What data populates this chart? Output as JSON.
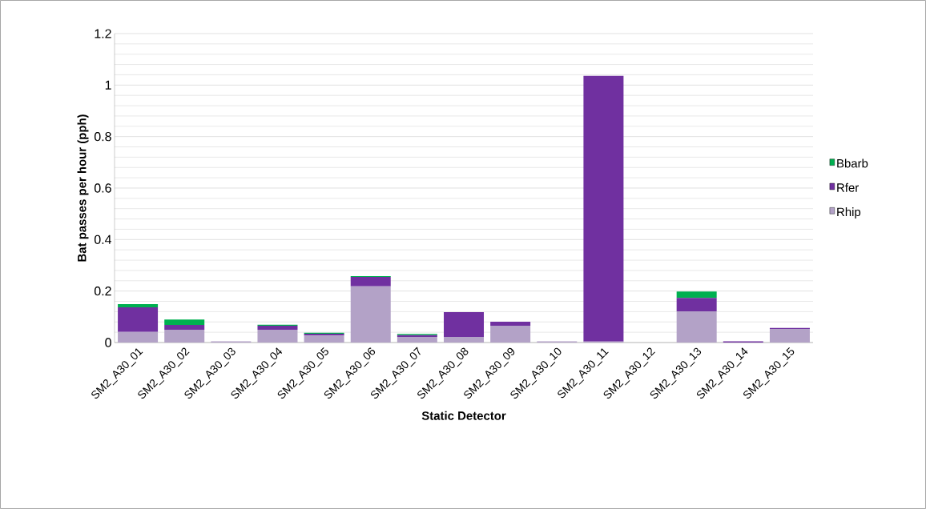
{
  "chart_data": {
    "type": "bar",
    "stacked": true,
    "xlabel": "Static Detector",
    "ylabel": "Bat passes per hour (pph)",
    "categories": [
      "SM2_A30_01",
      "SM2_A30_02",
      "SM2_A30_03",
      "SM2_A30_04",
      "SM2_A30_05",
      "SM2_A30_06",
      "SM2_A30_07",
      "SM2_A30_08",
      "SM2_A30_09",
      "SM2_A30_10",
      "SM2_A30_11",
      "SM2_A30_12",
      "SM2_A30_13",
      "SM2_A30_14",
      "SM2_A30_15"
    ],
    "series": [
      {
        "name": "Rhip",
        "color": "#b3a2c7",
        "values": [
          0.041,
          0.05,
          0.005,
          0.05,
          0.027,
          0.218,
          0.022,
          0.022,
          0.065,
          0.005,
          0.004,
          0,
          0.121,
          0,
          0.053
        ]
      },
      {
        "name": "Rfer",
        "color": "#7030a0",
        "values": [
          0.096,
          0.018,
          0,
          0.015,
          0.007,
          0.037,
          0.007,
          0.096,
          0.016,
          0,
          1.032,
          0,
          0.052,
          0.005,
          0.004
        ]
      },
      {
        "name": "Bbarb",
        "color": "#00b050",
        "values": [
          0.012,
          0.021,
          0,
          0.004,
          0.004,
          0.003,
          0.004,
          0,
          0,
          0,
          0,
          0,
          0.025,
          0,
          0
        ]
      }
    ],
    "ylim": [
      0,
      1.2
    ],
    "yticks": [
      0,
      0.2,
      0.4,
      0.6,
      0.8,
      1,
      1.2
    ],
    "grid": "y",
    "legend": "right"
  }
}
